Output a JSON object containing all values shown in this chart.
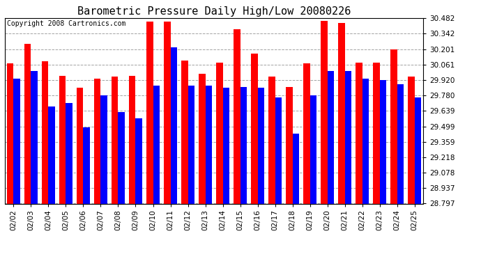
{
  "title": "Barometric Pressure Daily High/Low 20080226",
  "copyright": "Copyright 2008 Cartronics.com",
  "dates": [
    "02/02",
    "02/03",
    "02/04",
    "02/05",
    "02/06",
    "02/07",
    "02/08",
    "02/09",
    "02/10",
    "02/11",
    "02/12",
    "02/13",
    "02/14",
    "02/15",
    "02/16",
    "02/17",
    "02/18",
    "02/19",
    "02/20",
    "02/21",
    "02/22",
    "02/23",
    "02/24",
    "02/25"
  ],
  "highs": [
    30.07,
    30.25,
    30.09,
    29.96,
    29.85,
    29.93,
    29.95,
    29.96,
    30.45,
    30.45,
    30.1,
    29.98,
    30.08,
    30.38,
    30.16,
    29.95,
    29.86,
    30.07,
    30.46,
    30.44,
    30.08,
    30.08,
    30.2,
    29.95
  ],
  "lows": [
    29.93,
    30.0,
    29.68,
    29.71,
    29.49,
    29.78,
    29.63,
    29.57,
    29.87,
    30.22,
    29.87,
    29.87,
    29.85,
    29.86,
    29.85,
    29.76,
    29.43,
    29.78,
    30.0,
    30.0,
    29.93,
    29.92,
    29.88,
    29.76
  ],
  "ymin": 28.797,
  "ymax": 30.482,
  "yticks": [
    28.797,
    28.937,
    29.078,
    29.218,
    29.359,
    29.499,
    29.639,
    29.78,
    29.92,
    30.061,
    30.201,
    30.342,
    30.482
  ],
  "bar_width": 0.38,
  "high_color": "#ff0000",
  "low_color": "#0000ff",
  "bg_color": "#ffffff",
  "grid_color": "#999999",
  "title_fontsize": 11,
  "copyright_fontsize": 7
}
